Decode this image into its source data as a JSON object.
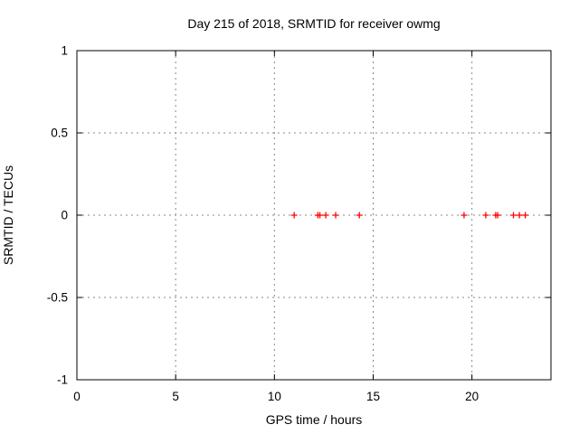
{
  "title": "Day 215 of 2018, SRMTID for receiver owmg",
  "colors": {
    "background": "#ffffff",
    "axis": "#000000",
    "grid": "#888888",
    "marker": "#ff0000",
    "text": "#000000"
  },
  "chart_data": {
    "type": "scatter",
    "title": "Day 215 of 2018, SRMTID for receiver owmg",
    "xlabel": "GPS time / hours",
    "ylabel": "SRMTID / TECUs",
    "xlim": [
      0,
      24
    ],
    "ylim": [
      -1,
      1
    ],
    "xticks": [
      0,
      5,
      10,
      15,
      20
    ],
    "xtick_labels": [
      "0",
      "5",
      "10",
      "15",
      "20"
    ],
    "yticks": [
      1,
      0.5,
      0,
      -0.5,
      -1
    ],
    "ytick_labels": [
      "1",
      "0.5",
      "0",
      "-0.5",
      "-1"
    ],
    "grid": true,
    "grid_style": "dashed",
    "legend": "none",
    "series": [
      {
        "name": "SRMTID",
        "marker": "plus",
        "color": "#ff0000",
        "points": [
          {
            "x": 11.0,
            "y": 0
          },
          {
            "x": 12.2,
            "y": 0
          },
          {
            "x": 12.3,
            "y": 0
          },
          {
            "x": 12.6,
            "y": 0
          },
          {
            "x": 13.1,
            "y": 0
          },
          {
            "x": 14.3,
            "y": 0
          },
          {
            "x": 19.6,
            "y": 0
          },
          {
            "x": 20.7,
            "y": 0
          },
          {
            "x": 21.2,
            "y": 0
          },
          {
            "x": 21.3,
            "y": 0
          },
          {
            "x": 22.1,
            "y": 0
          },
          {
            "x": 22.4,
            "y": 0
          },
          {
            "x": 22.7,
            "y": 0
          }
        ]
      }
    ]
  }
}
